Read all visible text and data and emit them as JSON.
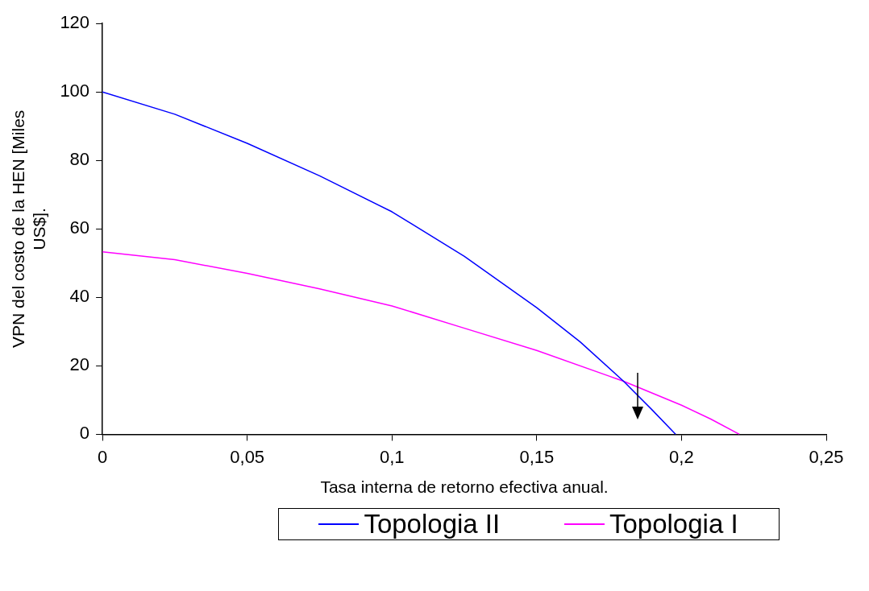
{
  "chart_data": {
    "type": "line",
    "xlabel": "Tasa interna de retorno efectiva anual.",
    "ylabel": "VPN del costo de la HEN [Miles US$].",
    "xlim": [
      0,
      0.25
    ],
    "xticks": [
      0,
      {
        "value": 0.05,
        "label": "0,05"
      },
      {
        "value": 0.1,
        "label": "0,1"
      },
      {
        "value": 0.15,
        "label": "0,15"
      },
      {
        "value": 0.2,
        "label": "0,2"
      },
      {
        "value": 0.25,
        "label": "0,25"
      }
    ],
    "ylim": [
      0,
      120
    ],
    "yticks": [
      0,
      20,
      40,
      60,
      80,
      100,
      120
    ],
    "grid": false,
    "legend": "bottom",
    "marker": "none",
    "line_style": "solid",
    "series": [
      {
        "name": "Topologia II",
        "color": "#0000ff",
        "x": [
          0,
          0.025,
          0.05,
          0.075,
          0.1,
          0.125,
          0.15,
          0.165,
          0.18,
          0.19,
          0.198
        ],
        "values": [
          100,
          93.5,
          85,
          75.5,
          65,
          52,
          37,
          27,
          15.5,
          7,
          0
        ]
      },
      {
        "name": "Topologia I",
        "color": "#ff00ff",
        "x": [
          0,
          0.025,
          0.05,
          0.075,
          0.1,
          0.125,
          0.15,
          0.175,
          0.18,
          0.2,
          0.21,
          0.22
        ],
        "values": [
          53.3,
          51,
          47,
          42.5,
          37.5,
          31,
          24.5,
          17,
          15.5,
          8.5,
          4.5,
          0
        ]
      }
    ]
  }
}
